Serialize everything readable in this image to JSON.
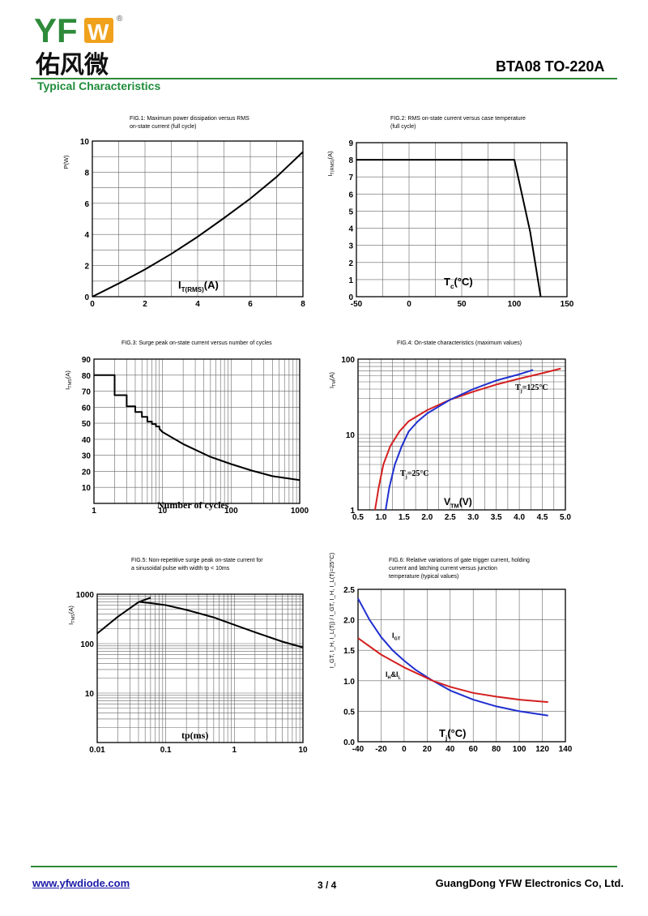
{
  "header": {
    "logo_text": "YFW",
    "logo_cn": "佑风微",
    "registered": "®",
    "part_title": "BTA08 TO-220A",
    "section_title": "Typical Characteristics"
  },
  "footer": {
    "website": "www.yfwdiode.com",
    "page": "3 / 4",
    "company": "GuangDong YFW Electronics Co, Ltd."
  },
  "colors": {
    "brand_green": "#2e8b3a",
    "logo_orange": "#f0a21c",
    "red_curve": "#d42020",
    "blue_curve": "#1f2fd0"
  },
  "chart_data": [
    {
      "id": "fig1",
      "type": "line",
      "title_lines": [
        "FIG.1: Maximum power dissipation versus RMS",
        "on-state current (full cycle)"
      ],
      "ylabel": "P(W)",
      "xlabel_main": "I",
      "xlabel_sub": "T(RMS)",
      "xlabel_tail": "(A)",
      "xlim": [
        0,
        8
      ],
      "ylim": [
        0,
        10
      ],
      "xticks": [
        0,
        2,
        4,
        6,
        8
      ],
      "yticks": [
        0,
        2,
        4,
        6,
        8,
        10
      ],
      "xticklabels": [
        "0",
        "2",
        "4",
        "6",
        "8"
      ],
      "yticklabels": [
        "0",
        "2",
        "4",
        "6",
        "8",
        "10"
      ],
      "xgrid": [
        0,
        1,
        2,
        3,
        4,
        5,
        6,
        7,
        8
      ],
      "ygrid": [
        0,
        1,
        2,
        3,
        4,
        5,
        6,
        7,
        8,
        9,
        10
      ],
      "series": [
        {
          "color": "#000000",
          "x": [
            0,
            1,
            2,
            3,
            4,
            5,
            6,
            7,
            8
          ],
          "y": [
            0,
            0.85,
            1.75,
            2.75,
            3.85,
            5.05,
            6.3,
            7.7,
            9.3
          ]
        }
      ]
    },
    {
      "id": "fig2",
      "type": "line",
      "title_lines": [
        "FIG.2: RMS on-state current versus case temperature",
        "(full cycle)"
      ],
      "ylabel": "I",
      "ylabel_sub": "T(RMS)",
      "ylabel_tail": "(A)",
      "xlabel_main": "T",
      "xlabel_sub": "c",
      "xlabel_tail": "(°C)",
      "xlim": [
        -50,
        150
      ],
      "ylim": [
        0,
        9
      ],
      "xticks": [
        -50,
        0,
        50,
        100,
        150
      ],
      "yticks": [
        0,
        1,
        2,
        3,
        4,
        5,
        6,
        7,
        8,
        9
      ],
      "xticklabels": [
        "-50",
        "0",
        "50",
        "100",
        "150"
      ],
      "yticklabels": [
        "0",
        "1",
        "2",
        "3",
        "4",
        "5",
        "6",
        "7",
        "8",
        "9"
      ],
      "xgrid": [
        -50,
        -25,
        0,
        25,
        50,
        75,
        100,
        125,
        150
      ],
      "ygrid": [
        0,
        1,
        2,
        3,
        4,
        5,
        6,
        7,
        8,
        9
      ],
      "series": [
        {
          "color": "#000000",
          "x": [
            -50,
            100,
            115,
            125
          ],
          "y": [
            8,
            8,
            3.8,
            0
          ]
        }
      ]
    },
    {
      "id": "fig3",
      "type": "line",
      "title_lines": [
        "FIG.3: Surge peak on-state current versus number of cycles"
      ],
      "ylabel": "I",
      "ylabel_sub": "TMS",
      "ylabel_tail": "(A)",
      "annotation": "Number of cycles",
      "xscale": "log",
      "xlim": [
        1,
        1000
      ],
      "ylim": [
        0,
        90
      ],
      "xticks": [
        1,
        10,
        100,
        1000
      ],
      "yticks": [
        10,
        20,
        30,
        40,
        50,
        60,
        70,
        80,
        90
      ],
      "xticklabels": [
        "1",
        "10",
        "100",
        "1000"
      ],
      "yticklabels": [
        "10",
        "20",
        "30",
        "40",
        "50",
        "60",
        "70",
        "80",
        "90"
      ],
      "ygrid": [
        0,
        10,
        20,
        30,
        40,
        50,
        60,
        70,
        80,
        90
      ],
      "series": [
        {
          "color": "#000000",
          "x": [
            1,
            2,
            2,
            3,
            3,
            4,
            4,
            5,
            5,
            6,
            6,
            7,
            7,
            8,
            8,
            9,
            9,
            10,
            20,
            50,
            100,
            200,
            400,
            1000
          ],
          "y": [
            80,
            80,
            67.5,
            67.5,
            60.5,
            60.5,
            57,
            57,
            54,
            54,
            51,
            51,
            49.5,
            49.5,
            48,
            48,
            46.5,
            44.5,
            37,
            29,
            24.5,
            20.5,
            17,
            14.5
          ]
        }
      ]
    },
    {
      "id": "fig4",
      "type": "line",
      "title_lines": [
        "FIG.4: On-state characteristics (maximum values)"
      ],
      "ylabel": "I",
      "ylabel_sub": "TM",
      "ylabel_tail": "(A)",
      "xlabel_main": "V",
      "xlabel_sub": "TM",
      "xlabel_tail": "(V)",
      "yscale": "log",
      "xlim": [
        0.5,
        5.0
      ],
      "ylim": [
        1,
        100
      ],
      "xticks": [
        0.5,
        1.0,
        1.5,
        2.0,
        2.5,
        3.0,
        3.5,
        4.0,
        4.5,
        5.0
      ],
      "yticks": [
        1,
        10,
        100
      ],
      "xticklabels": [
        "0.5",
        "1.0",
        "1.5",
        "2.0",
        "2.5",
        "3.0",
        "3.5",
        "4.0",
        "4.5",
        "5.0"
      ],
      "yticklabels": [
        "1",
        "10",
        "100"
      ],
      "xgrid": [
        0.5,
        0.75,
        1.0,
        1.25,
        1.5,
        1.75,
        2.0,
        2.25,
        2.5,
        2.75,
        3.0,
        3.25,
        3.5,
        3.75,
        4.0,
        4.25,
        4.5,
        4.75,
        5.0
      ],
      "legend": [
        {
          "label": "Tj=125°C",
          "main": "T",
          "sub": "j",
          "tail": "=125°C"
        },
        {
          "label": "Tj=25°C",
          "main": "T",
          "sub": "j",
          "tail": "=25°C"
        }
      ],
      "series": [
        {
          "name": "Tj=125°C",
          "color": "#d42020",
          "x": [
            0.87,
            0.95,
            1.05,
            1.2,
            1.4,
            1.6,
            2.0,
            2.5,
            3.0,
            3.5,
            4.0,
            4.5,
            4.9
          ],
          "y": [
            1,
            2,
            4,
            7,
            11,
            15,
            21,
            29,
            37,
            46,
            55,
            65,
            75
          ]
        },
        {
          "name": "Tj=25°C",
          "color": "#1f2fd0",
          "x": [
            1.1,
            1.18,
            1.3,
            1.45,
            1.6,
            1.8,
            2.0,
            2.5,
            3.0,
            3.5,
            4.0,
            4.3
          ],
          "y": [
            1,
            2,
            4,
            7,
            11,
            15,
            19,
            29,
            40,
            52,
            63,
            72
          ]
        }
      ]
    },
    {
      "id": "fig5",
      "type": "line",
      "title_lines": [
        "FIG.5: Non-repetitive surge peak on-state current for",
        "a sinusoidal pulse with width tp < 10ms"
      ],
      "ylabel": "I",
      "ylabel_sub": "TMS",
      "ylabel_tail": "(A)",
      "annotation": "tp(ms)",
      "xscale": "log",
      "yscale": "log",
      "xlim": [
        0.01,
        10
      ],
      "ylim": [
        1,
        1000
      ],
      "xticks": [
        0.01,
        0.1,
        1,
        10
      ],
      "yticks": [
        10,
        100,
        1000
      ],
      "xticklabels": [
        "0.01",
        "0.1",
        "1",
        "10"
      ],
      "yticklabels": [
        "10",
        "100",
        "1000"
      ],
      "series": [
        {
          "color": "#000000",
          "x": [
            0.01,
            0.02,
            0.04,
            0.06
          ],
          "y": [
            160,
            350,
            690,
            850
          ]
        },
        {
          "color": "#000000",
          "x": [
            0.04,
            0.06,
            0.1,
            0.2,
            0.5,
            1,
            2,
            5,
            10
          ],
          "y": [
            700,
            660,
            600,
            480,
            340,
            240,
            170,
            110,
            84
          ]
        }
      ]
    },
    {
      "id": "fig6",
      "type": "line",
      "title_lines": [
        "FIG.6: Relative variations of gate trigger current, holding",
        "current and latching current versus junction",
        "temperature (typical values)"
      ],
      "ylabel": "I_GT, I_H, I_L(Tj) / I_GT, I_H, I_L(Tj=25°C)",
      "xlabel_main": "T",
      "xlabel_sub": "j",
      "xlabel_tail": "(°C)",
      "xlim": [
        -40,
        140
      ],
      "ylim": [
        0,
        2.5
      ],
      "xticks": [
        -40,
        -20,
        0,
        20,
        40,
        60,
        80,
        100,
        120,
        140
      ],
      "yticks": [
        0,
        0.5,
        1.0,
        1.5,
        2.0,
        2.5
      ],
      "xticklabels": [
        "-40",
        "-20",
        "0",
        "20",
        "40",
        "60",
        "80",
        "100",
        "120",
        "140"
      ],
      "yticklabels": [
        "0.0",
        "0.5",
        "1.0",
        "1.5",
        "2.0",
        "2.5"
      ],
      "xgrid": [
        -40,
        -20,
        0,
        20,
        40,
        60,
        80,
        100,
        120,
        140
      ],
      "ygrid": [
        0,
        0.5,
        1.0,
        1.5,
        2.0,
        2.5
      ],
      "legend": [
        {
          "label": "IGT",
          "main": "I",
          "sub": "GT",
          "tail": ""
        },
        {
          "label": "IH&IL",
          "main": "I",
          "sub": "H",
          "tail": "&I",
          "sub2": "L"
        }
      ],
      "series": [
        {
          "name": "IGT",
          "color": "#1f2fd0",
          "x": [
            -40,
            -30,
            -20,
            -10,
            0,
            10,
            25,
            40,
            60,
            80,
            100,
            125
          ],
          "y": [
            2.35,
            2.0,
            1.72,
            1.5,
            1.33,
            1.18,
            1.0,
            0.84,
            0.69,
            0.58,
            0.5,
            0.43
          ]
        },
        {
          "name": "IH&IL",
          "color": "#d42020",
          "x": [
            -40,
            -20,
            0,
            25,
            40,
            60,
            80,
            100,
            125
          ],
          "y": [
            1.7,
            1.43,
            1.22,
            1.0,
            0.9,
            0.8,
            0.74,
            0.69,
            0.65
          ]
        }
      ]
    }
  ]
}
